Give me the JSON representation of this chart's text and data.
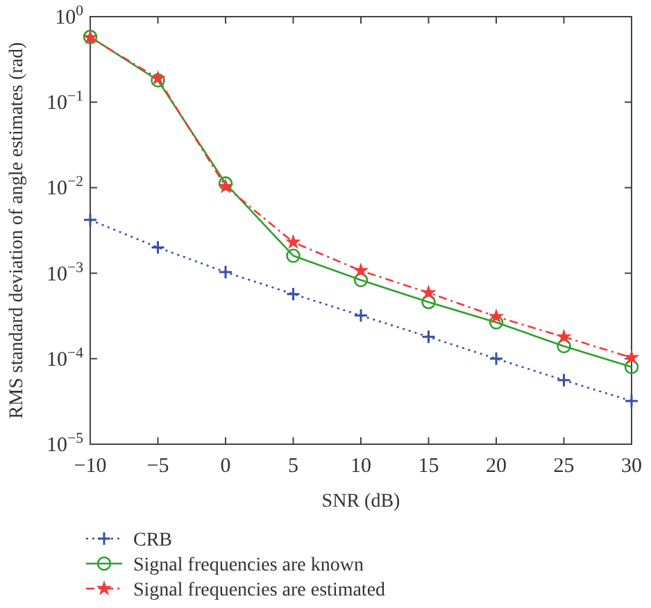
{
  "chart_data": {
    "type": "line",
    "xlabel": "SNR (dB)",
    "ylabel": "RMS standard deviation of angle estimates (rad)",
    "x": [
      -10,
      -5,
      0,
      5,
      10,
      15,
      20,
      25,
      30
    ],
    "series": [
      {
        "name": "CRB",
        "color": "#3a4fa8",
        "marker": "cross",
        "line_style": "dotted",
        "values": [
          0.0042,
          0.002,
          0.00103,
          0.00057,
          0.00032,
          0.00018,
          0.0001,
          5.6e-05,
          3.2e-05
        ]
      },
      {
        "name": "Signal frequencies are known",
        "color": "#2ca02c",
        "marker": "circle",
        "line_style": "solid",
        "values": [
          0.58,
          0.18,
          0.0112,
          0.0016,
          0.00083,
          0.00046,
          0.000266,
          0.00014,
          8e-05
        ]
      },
      {
        "name": "Signal frequencies are estimated",
        "color": "#f03a3a",
        "marker": "star",
        "line_style": "dashed",
        "values": [
          0.57,
          0.19,
          0.0103,
          0.0023,
          0.00107,
          0.00059,
          0.00031,
          0.00018,
          0.000103
        ]
      }
    ],
    "log": "y",
    "xlim": [
      -10,
      30
    ],
    "ylim": [
      1e-05,
      1
    ],
    "xticks": [
      {
        "value": -10,
        "label": "−10"
      },
      {
        "value": -5,
        "label": "−5"
      },
      0,
      5,
      10,
      15,
      20,
      25,
      30
    ],
    "yticks": [
      {
        "value": 1e-05,
        "label": "10$^{−5}$"
      },
      {
        "value": 0.0001,
        "label": "10$^{−4}$"
      },
      {
        "value": 0.001,
        "label": "10$^{−3}$"
      },
      {
        "value": 0.01,
        "label": "10$^{−2}$"
      },
      {
        "value": 0.1,
        "label": "10$^{−1}$"
      },
      {
        "value": 1,
        "label": "10$^{0}$"
      }
    ],
    "grid": false,
    "legend": "bottom"
  }
}
